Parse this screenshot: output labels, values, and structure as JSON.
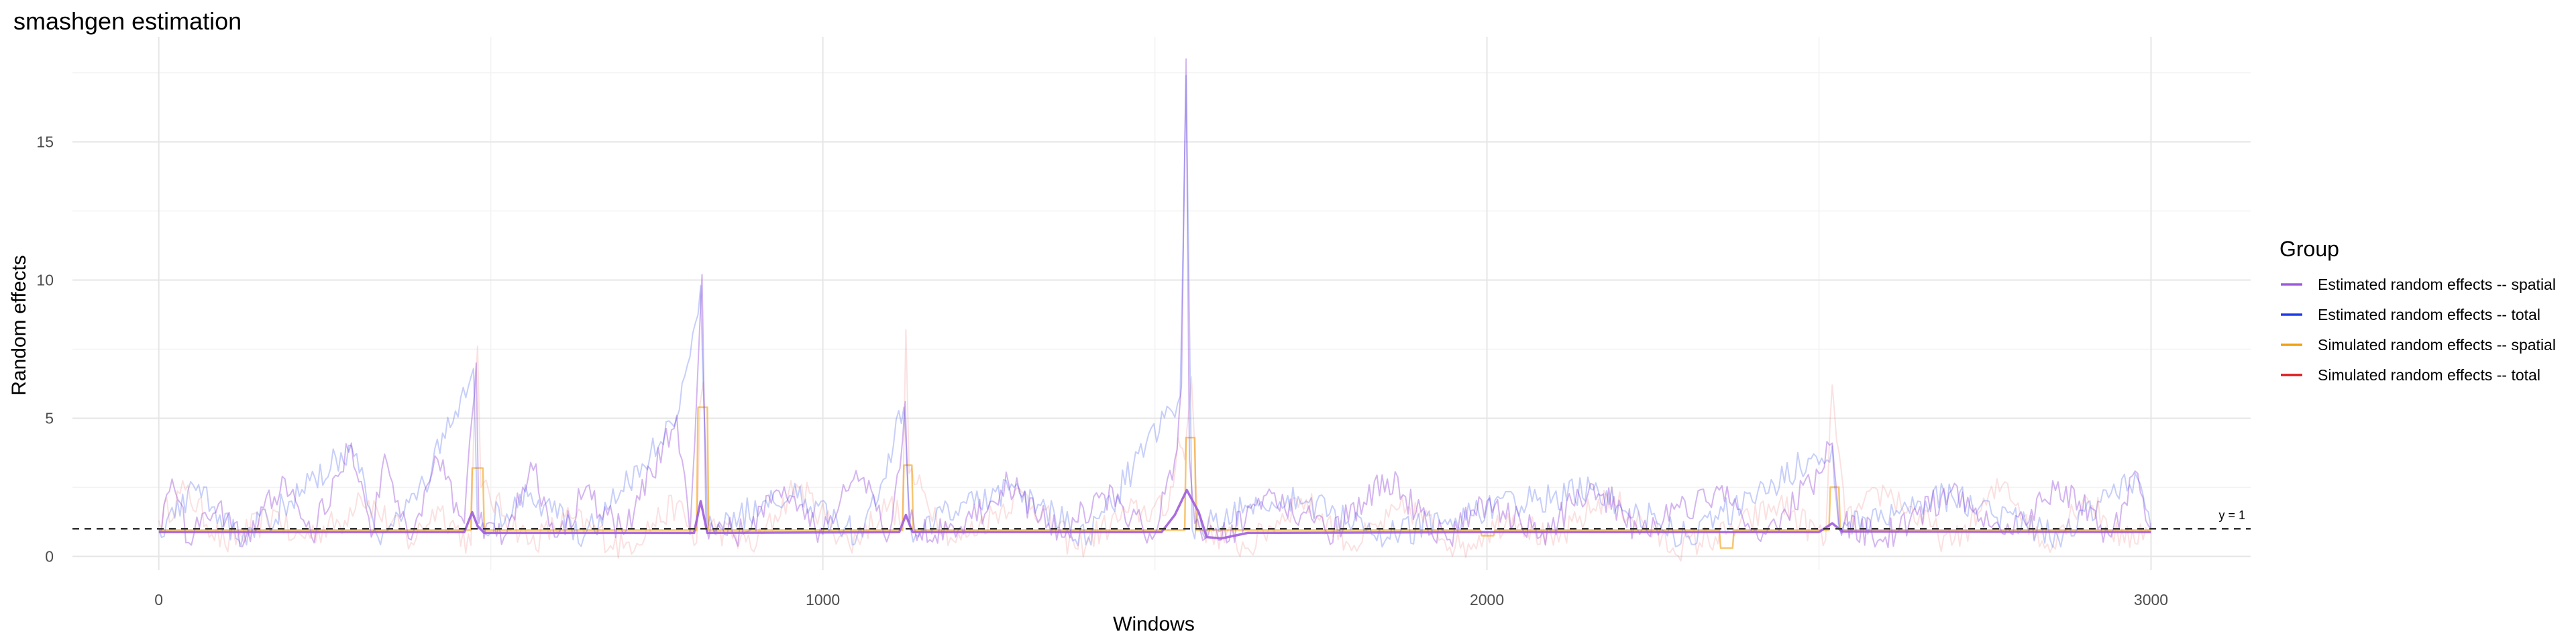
{
  "chart_data": {
    "type": "line",
    "title": "smashgen estimation",
    "xlabel": "Windows",
    "ylabel": "Random effects",
    "xlim": [
      -130,
      3150
    ],
    "ylim": [
      -0.5,
      18.8
    ],
    "x_ticks": [
      0,
      1000,
      2000,
      3000
    ],
    "y_ticks": [
      0,
      5,
      10,
      15
    ],
    "grid": true,
    "legend": {
      "title": "Group",
      "position": "right",
      "entries": [
        {
          "label": "Estimated random effects -- spatial",
          "color": "#a05cdc"
        },
        {
          "label": "Estimated random effects -- total",
          "color": "#1f3ee8"
        },
        {
          "label": "Simulated random effects -- spatial",
          "color": "#f0a010"
        },
        {
          "label": "Simulated random effects -- total",
          "color": "#e01b1b"
        }
      ]
    },
    "reference_line": {
      "y": 1,
      "label": "y = 1",
      "style": "dashed"
    },
    "series": [
      {
        "name": "Simulated random effects -- total",
        "color": "#e01b1b",
        "opacity": 0.13,
        "smoothness": "raw",
        "points": [
          [
            0,
            1.3
          ],
          [
            40,
            2.4
          ],
          [
            100,
            0.4
          ],
          [
            180,
            1.6
          ],
          [
            200,
            0.6
          ],
          [
            280,
            1.3
          ],
          [
            300,
            2.3
          ],
          [
            380,
            0.5
          ],
          [
            420,
            1.8
          ],
          [
            470,
            0.4
          ],
          [
            475,
            5.2
          ],
          [
            480,
            7.6
          ],
          [
            485,
            2.5
          ],
          [
            560,
            0.5
          ],
          [
            620,
            1.4
          ],
          [
            700,
            0.3
          ],
          [
            780,
            1.9
          ],
          [
            810,
            0.5
          ],
          [
            815,
            5.5
          ],
          [
            820,
            6.3
          ],
          [
            828,
            1.1
          ],
          [
            900,
            0.4
          ],
          [
            960,
            2.6
          ],
          [
            1040,
            0.4
          ],
          [
            1100,
            1.9
          ],
          [
            1120,
            1.3
          ],
          [
            1125,
            8.2
          ],
          [
            1130,
            3.0
          ],
          [
            1200,
            0.5
          ],
          [
            1300,
            2.3
          ],
          [
            1380,
            0.3
          ],
          [
            1460,
            1.6
          ],
          [
            1520,
            1.7
          ],
          [
            1535,
            4.3
          ],
          [
            1545,
            3.5
          ],
          [
            1555,
            6.5
          ],
          [
            1565,
            1.1
          ],
          [
            1640,
            0.3
          ],
          [
            1720,
            2.1
          ],
          [
            1800,
            0.4
          ],
          [
            1880,
            1.8
          ],
          [
            1960,
            0.3
          ],
          [
            2000,
            0.9
          ],
          [
            2040,
            1.5
          ],
          [
            2100,
            0.4
          ],
          [
            2180,
            2.2
          ],
          [
            2280,
            0.3
          ],
          [
            2360,
            0.8
          ],
          [
            2440,
            1.9
          ],
          [
            2510,
            0.6
          ],
          [
            2520,
            6.2
          ],
          [
            2530,
            3.8
          ],
          [
            2540,
            1.2
          ],
          [
            2600,
            2.4
          ],
          [
            2700,
            0.4
          ],
          [
            2780,
            2.7
          ],
          [
            2840,
            0.3
          ],
          [
            2900,
            2.2
          ],
          [
            2960,
            0.5
          ],
          [
            3000,
            1.2
          ]
        ]
      },
      {
        "name": "Simulated random effects -- spatial",
        "color": "#f0a010",
        "opacity": 0.6,
        "smoothness": "step",
        "points": [
          [
            0,
            0.95
          ],
          [
            470,
            0.95
          ],
          [
            472,
            3.2
          ],
          [
            488,
            3.2
          ],
          [
            490,
            0.95
          ],
          [
            810,
            0.95
          ],
          [
            812,
            5.4
          ],
          [
            826,
            5.4
          ],
          [
            828,
            0.95
          ],
          [
            1120,
            0.95
          ],
          [
            1122,
            3.3
          ],
          [
            1134,
            3.3
          ],
          [
            1136,
            0.95
          ],
          [
            1545,
            0.95
          ],
          [
            1547,
            4.3
          ],
          [
            1560,
            4.3
          ],
          [
            1562,
            0.95
          ],
          [
            1990,
            0.95
          ],
          [
            1992,
            0.75
          ],
          [
            2010,
            0.75
          ],
          [
            2012,
            0.95
          ],
          [
            2350,
            0.95
          ],
          [
            2352,
            0.3
          ],
          [
            2370,
            0.3
          ],
          [
            2372,
            0.95
          ],
          [
            2515,
            0.95
          ],
          [
            2517,
            2.5
          ],
          [
            2530,
            2.5
          ],
          [
            2532,
            0.95
          ],
          [
            3000,
            0.95
          ]
        ]
      },
      {
        "name": "Estimated random effects -- spatial",
        "color": "#a05cdc",
        "opacity": 0.45,
        "smoothness": "raw",
        "points": [
          [
            0,
            1.0
          ],
          [
            20,
            2.8
          ],
          [
            45,
            0.5
          ],
          [
            90,
            1.9
          ],
          [
            130,
            0.6
          ],
          [
            190,
            2.8
          ],
          [
            230,
            0.7
          ],
          [
            290,
            4.1
          ],
          [
            320,
            0.7
          ],
          [
            340,
            3.7
          ],
          [
            380,
            0.6
          ],
          [
            420,
            3.5
          ],
          [
            460,
            1.2
          ],
          [
            472,
            5.1
          ],
          [
            478,
            7.0
          ],
          [
            482,
            1.2
          ],
          [
            520,
            0.7
          ],
          [
            560,
            3.4
          ],
          [
            600,
            0.7
          ],
          [
            640,
            2.3
          ],
          [
            700,
            0.8
          ],
          [
            780,
            5.1
          ],
          [
            800,
            0.8
          ],
          [
            814,
            8.0
          ],
          [
            818,
            10.2
          ],
          [
            824,
            1.2
          ],
          [
            880,
            0.8
          ],
          [
            930,
            2.4
          ],
          [
            1000,
            0.8
          ],
          [
            1050,
            3.1
          ],
          [
            1100,
            0.8
          ],
          [
            1120,
            4.2
          ],
          [
            1124,
            5.6
          ],
          [
            1130,
            1.2
          ],
          [
            1200,
            0.7
          ],
          [
            1280,
            2.6
          ],
          [
            1360,
            0.7
          ],
          [
            1420,
            2.3
          ],
          [
            1500,
            0.8
          ],
          [
            1530,
            3.5
          ],
          [
            1540,
            6.2
          ],
          [
            1547,
            18.0
          ],
          [
            1552,
            3.5
          ],
          [
            1560,
            1.2
          ],
          [
            1600,
            0.6
          ],
          [
            1680,
            2.3
          ],
          [
            1760,
            0.8
          ],
          [
            1850,
            2.8
          ],
          [
            1940,
            0.6
          ],
          [
            2000,
            2.0
          ],
          [
            2080,
            0.7
          ],
          [
            2160,
            2.6
          ],
          [
            2230,
            0.8
          ],
          [
            2350,
            2.4
          ],
          [
            2420,
            0.8
          ],
          [
            2500,
            3.0
          ],
          [
            2520,
            4.1
          ],
          [
            2530,
            1.2
          ],
          [
            2600,
            0.7
          ],
          [
            2700,
            2.4
          ],
          [
            2780,
            0.8
          ],
          [
            2860,
            2.7
          ],
          [
            2940,
            0.7
          ],
          [
            2980,
            3.0
          ],
          [
            3000,
            1.0
          ]
        ]
      },
      {
        "name": "Estimated random effects -- total",
        "color": "#1f3ee8",
        "opacity": 0.25,
        "smoothness": "raw",
        "points": [
          [
            0,
            1.0
          ],
          [
            60,
            2.6
          ],
          [
            120,
            0.6
          ],
          [
            200,
            2.0
          ],
          [
            290,
            4.0
          ],
          [
            330,
            0.7
          ],
          [
            400,
            2.6
          ],
          [
            474,
            6.8
          ],
          [
            480,
            1.0
          ],
          [
            560,
            2.3
          ],
          [
            640,
            0.7
          ],
          [
            780,
            5.0
          ],
          [
            816,
            9.8
          ],
          [
            826,
            1.0
          ],
          [
            950,
            2.2
          ],
          [
            1060,
            0.7
          ],
          [
            1122,
            5.4
          ],
          [
            1132,
            1.0
          ],
          [
            1280,
            2.4
          ],
          [
            1400,
            0.7
          ],
          [
            1538,
            5.8
          ],
          [
            1547,
            17.4
          ],
          [
            1556,
            1.0
          ],
          [
            1700,
            2.2
          ],
          [
            1850,
            0.7
          ],
          [
            2000,
            1.8
          ],
          [
            2160,
            2.4
          ],
          [
            2300,
            0.7
          ],
          [
            2520,
            4.0
          ],
          [
            2530,
            1.0
          ],
          [
            2700,
            2.2
          ],
          [
            2860,
            0.7
          ],
          [
            2980,
            2.8
          ],
          [
            3000,
            1.0
          ]
        ]
      },
      {
        "name": "Estimated random effects -- spatial (smoothed)",
        "color": "#a05cdc",
        "opacity": 0.9,
        "smoothness": "smooth",
        "points": [
          [
            0,
            0.88
          ],
          [
            460,
            0.88
          ],
          [
            472,
            1.6
          ],
          [
            480,
            1.1
          ],
          [
            490,
            0.85
          ],
          [
            806,
            0.85
          ],
          [
            816,
            2.0
          ],
          [
            826,
            0.85
          ],
          [
            1115,
            0.88
          ],
          [
            1125,
            1.5
          ],
          [
            1135,
            0.88
          ],
          [
            1510,
            0.88
          ],
          [
            1530,
            1.5
          ],
          [
            1548,
            2.4
          ],
          [
            1566,
            1.6
          ],
          [
            1578,
            0.7
          ],
          [
            1600,
            0.65
          ],
          [
            1640,
            0.85
          ],
          [
            2000,
            0.88
          ],
          [
            2500,
            0.88
          ],
          [
            2520,
            1.2
          ],
          [
            2535,
            0.9
          ],
          [
            3000,
            0.88
          ]
        ]
      }
    ]
  }
}
